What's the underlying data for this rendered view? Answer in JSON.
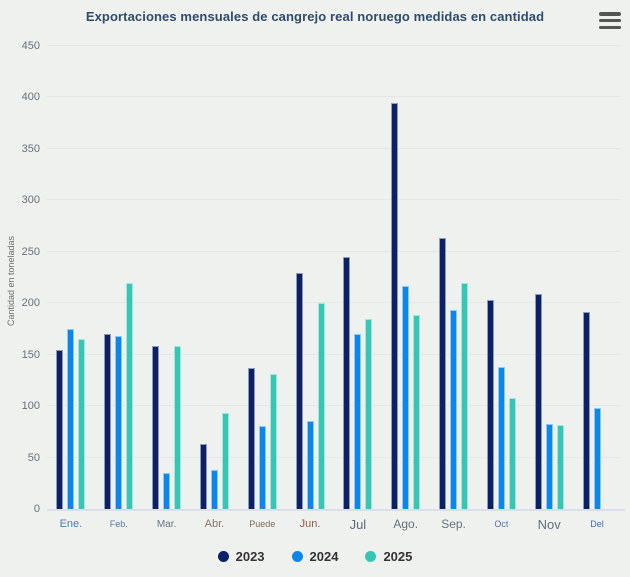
{
  "header": {
    "menu_icon": "hamburger-icon"
  },
  "chart_data": {
    "type": "bar",
    "title": "Exportaciones mensuales de cangrejo real noruego medidas en cantidad",
    "xlabel": "",
    "ylabel": "Cantidad en toneladas",
    "ylim": [
      0,
      450
    ],
    "y_ticks": [
      0,
      50,
      100,
      150,
      200,
      250,
      300,
      350,
      400,
      450
    ],
    "grid": true,
    "legend_position": "bottom",
    "categories": [
      "Ene.",
      "Feb.",
      "Mar.",
      "Abr.",
      "Puede",
      "Jun.",
      "Jul",
      "Ago.",
      "Sep.",
      "Oct",
      "Nov",
      "Del"
    ],
    "category_label_styles": [
      {
        "size": 11,
        "color": "#4d7ab8"
      },
      {
        "size": 9,
        "color": "#5577a8"
      },
      {
        "size": 10,
        "color": "#68758a"
      },
      {
        "size": 11,
        "color": "#85756b"
      },
      {
        "size": 9,
        "color": "#7d6a58"
      },
      {
        "size": 11,
        "color": "#8f5c46"
      },
      {
        "size": 13,
        "color": "#5d6b7c"
      },
      {
        "size": 12,
        "color": "#64707e"
      },
      {
        "size": 12,
        "color": "#64707e"
      },
      {
        "size": 9,
        "color": "#4d74b0"
      },
      {
        "size": 13,
        "color": "#646e7a"
      },
      {
        "size": 9,
        "color": "#3f6cb5"
      }
    ],
    "series": [
      {
        "name": "2023",
        "color": "#0b2166",
        "values": [
          155,
          170,
          158,
          63,
          137,
          229,
          245,
          395,
          263,
          203,
          209,
          191
        ]
      },
      {
        "name": "2024",
        "color": "#0b86ea",
        "values": [
          175,
          168,
          35,
          38,
          81,
          86,
          170,
          217,
          193,
          138,
          83,
          98
        ]
      },
      {
        "name": "2025",
        "color": "#36c6b4",
        "values": [
          165,
          220,
          158,
          93,
          131,
          200,
          185,
          189,
          220,
          108,
          82,
          null
        ]
      }
    ]
  },
  "colors": {
    "background": "#eff1ee",
    "title_text": "#2f4b6e",
    "gridline": "#e4e7e3",
    "axis_line": "#d9deec",
    "y_tick_text": "#66707a",
    "legend_text": "#333333",
    "menu_icon": "#545454"
  }
}
